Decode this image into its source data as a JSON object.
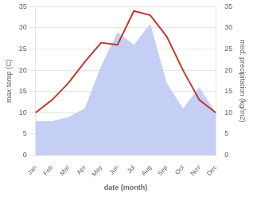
{
  "chart_data": {
    "type": "line",
    "xlabel": "date (month)",
    "ylabel": "max temp (C)",
    "y2label": "med. precipitation (kg/m2)",
    "categories": [
      "Jan",
      "Feb",
      "Mar",
      "Apr",
      "May",
      "Jun",
      "Jul",
      "Aug",
      "Sep",
      "Oct",
      "Nov",
      "Dec"
    ],
    "series": [
      {
        "type": "area",
        "axis": "y2",
        "color": "#c5cef5",
        "values": [
          8,
          8,
          9,
          11,
          21,
          29,
          26,
          31,
          17,
          11,
          16,
          10
        ]
      },
      {
        "type": "line",
        "axis": "y",
        "color": "#c0392b",
        "values": [
          10,
          13,
          17,
          22,
          26.5,
          26,
          34,
          33,
          28,
          20,
          13,
          10
        ]
      }
    ],
    "ylim": [
      0,
      35
    ],
    "yticks": [
      0,
      5,
      10,
      15,
      20,
      25,
      30,
      35
    ],
    "y2lim": [
      0,
      35
    ],
    "y2ticks": [
      0,
      5,
      10,
      15,
      20,
      25,
      30,
      35
    ],
    "grid": true
  }
}
